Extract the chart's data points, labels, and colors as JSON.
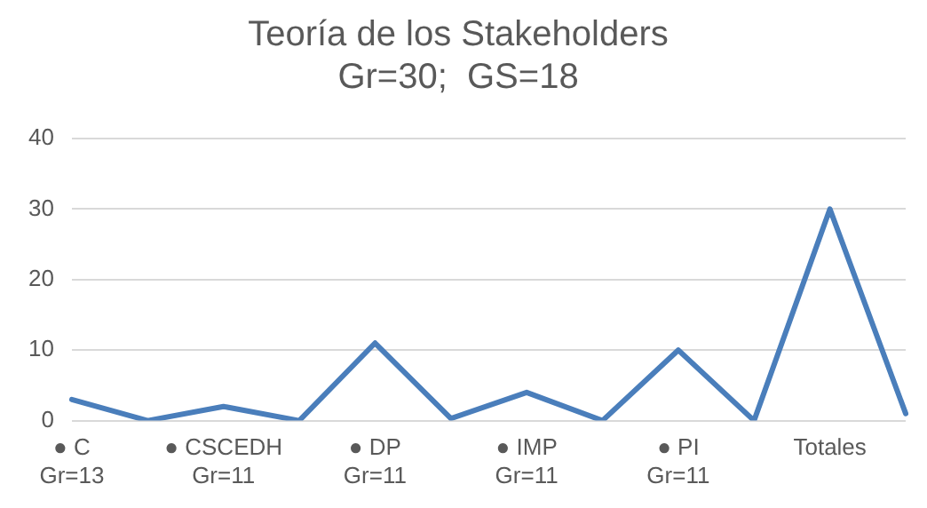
{
  "chart_data": {
    "type": "line",
    "title": "Teoría de los Stakeholders",
    "subtitle": "Gr=30;  GS=18",
    "categories": [
      "● C\nGr=13",
      null,
      "● CSCEDH\nGr=11",
      null,
      "● DP\nGr=11",
      null,
      "● IMP\nGr=11",
      null,
      "● PI\nGr=11",
      null,
      "Totales",
      null
    ],
    "series": [
      {
        "color": "#4a7ebb",
        "values": [
          3,
          0,
          2,
          0,
          11,
          0.3,
          4,
          0,
          10,
          0,
          30,
          1
        ]
      }
    ],
    "ylim": [
      0,
      40
    ],
    "yticks": [
      0,
      10,
      20,
      30,
      40
    ],
    "grid": "y",
    "legend": false,
    "marker": "none",
    "line_style": "solid"
  }
}
